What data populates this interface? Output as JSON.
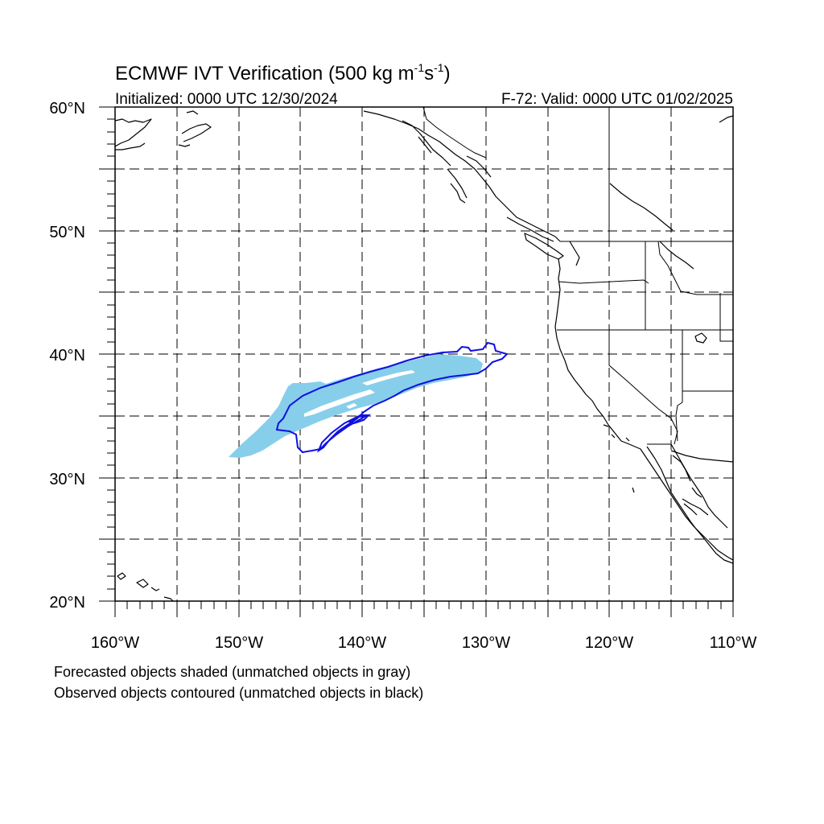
{
  "title": {
    "main": "ECMWF IVT Verification (500 kg m",
    "sup1": "-1",
    "mid": "s",
    "sup2": "-1",
    "end": ")"
  },
  "subtitle_left": "Initialized: 0000 UTC 12/30/2024",
  "subtitle_right": "F-72: Valid: 0000 UTC 01/02/2025",
  "lat_labels": [
    "60°N",
    "50°N",
    "40°N",
    "30°N",
    "20°N"
  ],
  "lon_labels": [
    "160°W",
    "150°W",
    "140°W",
    "130°W",
    "120°W",
    "110°W"
  ],
  "legend": {
    "line1": "Forecasted objects shaded (unmatched objects in gray)",
    "line2": "Observed objects contoured (unmatched objects in black)"
  },
  "colors": {
    "forecast_fill": "#87CEEB",
    "observed_contour": "#1010E0",
    "coastline": "#000000",
    "grid": "#000000"
  }
}
